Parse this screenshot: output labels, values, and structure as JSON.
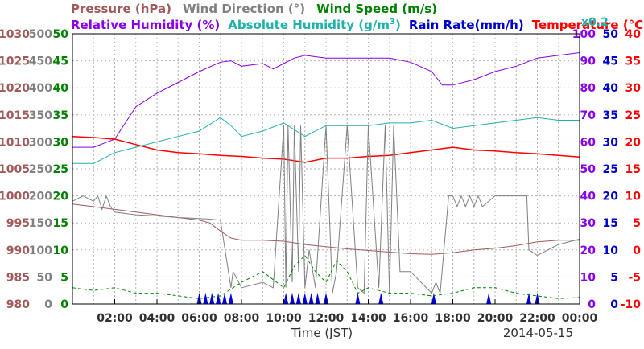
{
  "chart_data": {
    "type": "line",
    "xlabel": "Time (JST)",
    "date": "2014-05-15",
    "x_ticks": [
      "02:00",
      "04:00",
      "06:00",
      "08:00",
      "10:00",
      "12:00",
      "14:00",
      "16:00",
      "18:00",
      "20:00",
      "22:00",
      "00:00"
    ],
    "x_range_hours": [
      0,
      24
    ],
    "grid": true,
    "legend_row1": [
      {
        "label": "Pressure (hPa)",
        "color": "#a05a5a"
      },
      {
        "label": "Wind Direction (°)",
        "color": "#808080"
      },
      {
        "label": "Wind Speed (m/s)",
        "color": "#008000"
      }
    ],
    "legend_row2": [
      {
        "label": "Relative Humidity (%)",
        "color": "#8a00e6"
      },
      {
        "label": "Absolute Humidity (g/m",
        "sup": "3",
        "tail": ")",
        "color": "#20b2aa"
      },
      {
        "label": "Rain Rate(mm/h)",
        "color": "#0000cc"
      },
      {
        "label": "Temperature (°C)",
        "color": "#ff0000"
      }
    ],
    "rain_scale_label": "x0.2",
    "axes": [
      {
        "name": "Pressure (hPa)",
        "side": "left",
        "color": "#a05a5a",
        "ticks": [
          "980",
          "985",
          "990",
          "995",
          "1000",
          "1005",
          "1010",
          "1015",
          "1020",
          "1025",
          "1030"
        ],
        "range": [
          980,
          1030
        ]
      },
      {
        "name": "Wind Direction (°)",
        "side": "left",
        "color": "#808080",
        "ticks": [
          "0",
          "50",
          "100",
          "150",
          "200",
          "250",
          "300",
          "350",
          "400",
          "450",
          "500"
        ],
        "range": [
          0,
          500
        ]
      },
      {
        "name": "Wind Speed (m/s)",
        "side": "left",
        "color": "#008000",
        "ticks": [
          "0",
          "5",
          "10",
          "15",
          "20",
          "25",
          "30",
          "35",
          "40",
          "45",
          "50"
        ],
        "range": [
          0,
          50
        ]
      },
      {
        "name": "Relative Humidity (%)",
        "side": "right",
        "color": "#8a00e6",
        "ticks": [
          "0",
          "10",
          "20",
          "30",
          "40",
          "50",
          "60",
          "70",
          "80",
          "90",
          "100"
        ],
        "range": [
          0,
          100
        ]
      },
      {
        "name": "Rain Rate (mm/h)",
        "side": "right",
        "color": "#0000cc",
        "ticks": [
          "0",
          "5",
          "10",
          "15",
          "20",
          "25",
          "30",
          "35",
          "40",
          "45",
          "50"
        ],
        "range": [
          0,
          50
        ]
      },
      {
        "name": "Temperature (°C)",
        "side": "right",
        "color": "#ff0000",
        "ticks": [
          "-10",
          "-5",
          "0",
          "5",
          "10",
          "15",
          "20",
          "25",
          "30",
          "35",
          "40"
        ],
        "range": [
          -10,
          40
        ]
      }
    ],
    "series": [
      {
        "name": "Pressure (hPa)",
        "color": "#a05a5a",
        "axis": "Pressure (hPa)",
        "x": [
          0,
          1,
          2,
          3,
          4,
          5,
          6,
          6.5,
          7,
          7.5,
          8,
          9,
          10,
          11,
          12,
          13,
          14,
          15,
          16,
          17,
          18,
          19,
          20,
          21,
          22,
          23,
          24
        ],
        "y": [
          998.5,
          998,
          997.5,
          997,
          996.5,
          996,
          995.5,
          995,
          993.5,
          992.2,
          991.8,
          991.8,
          991.6,
          991,
          990.6,
          990.2,
          989.9,
          989.6,
          989.3,
          989.2,
          989.5,
          990,
          990.3,
          990.8,
          991.5,
          991.8,
          991.8
        ]
      },
      {
        "name": "Relative Humidity (%)",
        "color": "#8a00e6",
        "axis": "Relative Humidity (%)",
        "x": [
          0,
          1,
          2,
          3,
          4,
          5,
          6,
          7,
          7.5,
          8,
          9,
          9.5,
          10,
          10.5,
          11,
          12,
          13,
          14,
          15,
          16,
          17,
          17.5,
          18,
          19,
          20,
          21,
          22,
          23,
          24
        ],
        "y": [
          58,
          58,
          61,
          73,
          78,
          82,
          86,
          89.5,
          90,
          88,
          89,
          87,
          89,
          91,
          92,
          91,
          91,
          91,
          91,
          89.5,
          86,
          81,
          81,
          83,
          86,
          88,
          91,
          92,
          93
        ]
      },
      {
        "name": "Absolute Humidity (g/m3)",
        "color": "#20b2aa",
        "axis": "Wind Speed (m/s)",
        "x": [
          0,
          1,
          2,
          3,
          4,
          5,
          6,
          7,
          7.5,
          8,
          9,
          10,
          11,
          12,
          13,
          14,
          15,
          16,
          17,
          18,
          19,
          20,
          21,
          22,
          23,
          24
        ],
        "y": [
          26,
          26,
          28,
          29,
          30,
          31,
          32,
          34.5,
          33,
          31,
          32,
          33.5,
          31,
          33,
          33,
          33,
          33.5,
          33.5,
          34,
          32.5,
          33,
          33.5,
          34,
          34.5,
          34,
          34
        ]
      },
      {
        "name": "Temperature (°C)",
        "color": "#ff0000",
        "axis": "Temperature (°C)",
        "x": [
          0,
          1,
          2,
          3,
          4,
          5,
          6,
          7,
          8,
          9,
          10,
          11,
          12,
          13,
          14,
          15,
          16,
          17,
          18,
          19,
          20,
          21,
          22,
          23,
          24
        ],
        "y": [
          21,
          20.8,
          20.5,
          19.5,
          18.5,
          18,
          17.8,
          17.5,
          17.3,
          17,
          16.8,
          16.2,
          17,
          17,
          17.3,
          17.5,
          18,
          18.5,
          19,
          18.5,
          18.3,
          18,
          17.8,
          17.5,
          17.2
        ]
      },
      {
        "name": "Wind Direction (°)",
        "color": "#808080",
        "axis": "Wind Direction (°)",
        "x": [
          0,
          0.5,
          1,
          1.2,
          1.4,
          1.6,
          1.8,
          2,
          3,
          4,
          5,
          6,
          6.5,
          7,
          7.5,
          7.6,
          8,
          9,
          9.5,
          10,
          10.1,
          10.2,
          10.4,
          10.5,
          10.7,
          10.8,
          11,
          11.2,
          11.5,
          12,
          12.3,
          12.5,
          13,
          13.5,
          13.8,
          14,
          14.5,
          14.8,
          15,
          15.2,
          15.5,
          16,
          17,
          17.2,
          17.4,
          17.8,
          18,
          18.2,
          18.4,
          18.6,
          18.8,
          19,
          19.2,
          19.4,
          20,
          21,
          21.5,
          21.6,
          22,
          23,
          24
        ],
        "y": [
          190,
          200,
          190,
          200,
          175,
          200,
          180,
          170,
          165,
          163,
          160,
          158,
          157,
          155,
          30,
          60,
          30,
          40,
          30,
          330,
          30,
          330,
          40,
          330,
          60,
          330,
          30,
          100,
          30,
          330,
          20,
          60,
          330,
          30,
          20,
          330,
          30,
          330,
          20,
          330,
          60,
          60,
          20,
          40,
          20,
          200,
          200,
          180,
          200,
          180,
          200,
          180,
          200,
          180,
          200,
          200,
          200,
          100,
          90,
          110,
          120
        ]
      },
      {
        "name": "Wind Speed (m/s)",
        "color": "#008000",
        "axis": "Wind Speed (m/s)",
        "x": [
          0,
          1,
          2,
          3,
          4,
          5,
          6,
          7,
          8,
          9,
          10,
          10.5,
          11,
          11.5,
          12,
          12.5,
          13,
          13.5,
          14,
          15,
          16,
          17,
          18,
          19,
          20,
          21,
          22,
          23,
          24
        ],
        "y": [
          3,
          2.5,
          3,
          2,
          2,
          1.5,
          1,
          1.5,
          4,
          6,
          3,
          7,
          9,
          6,
          4,
          8,
          6,
          2,
          3,
          2,
          2,
          1.5,
          2,
          3,
          3,
          2,
          1.5,
          1,
          1.2
        ]
      }
    ],
    "rain_events_hours": [
      6.0,
      6.3,
      6.6,
      6.9,
      7.2,
      7.5,
      10.1,
      10.4,
      10.7,
      11.0,
      11.3,
      11.6,
      12.0,
      13.5,
      14.6,
      17.1,
      19.7,
      21.6,
      22.0
    ]
  }
}
